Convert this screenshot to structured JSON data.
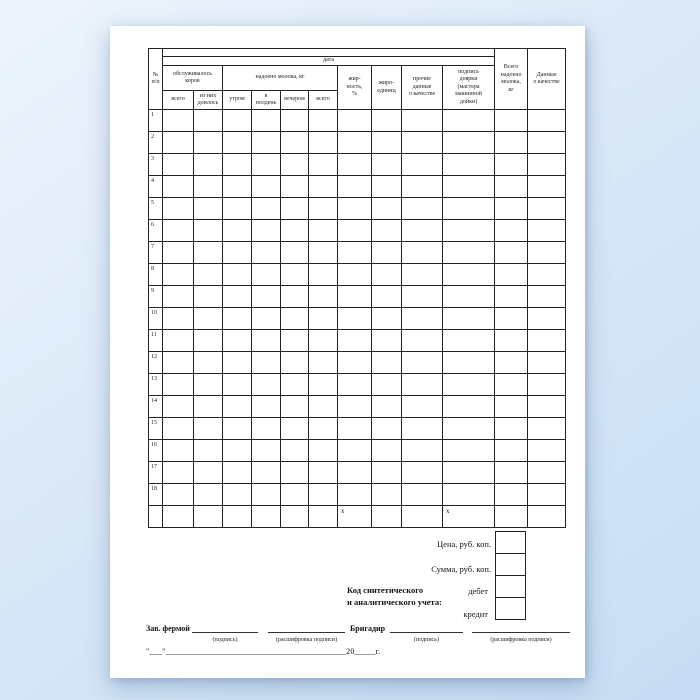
{
  "table": {
    "corner": "№\nп/п",
    "date": "дата",
    "group_serviced": "обслуживалось\nкоров",
    "group_milked": "надоено молока, кг",
    "fat": "жир-\nность,\n%",
    "fat_units": "жиро-\nединиц",
    "other_quality": "прочие\nданные\nо качестве",
    "milker_sign": "подпись\nдоярки\n(мастера\nмашинной\nдойки)",
    "total_milk": "Всего\nнадоено\nмолока,\nкг",
    "quality_data": "Данные\nо качестве",
    "sub": [
      "всего",
      "из них\nдоилось",
      "утром",
      "в\nполдень",
      "вечером",
      "всего"
    ],
    "row_numbers": [
      "1",
      "2",
      "3",
      "4",
      "5",
      "6",
      "7",
      "8",
      "9",
      "10",
      "11",
      "12",
      "13",
      "14",
      "15",
      "16",
      "17",
      "18"
    ],
    "totals_marks": {
      "fat": "х",
      "signature": "х"
    }
  },
  "accounting": {
    "price": "Цена, руб. коп.",
    "sum": "Сумма, руб. коп.",
    "code": "Код синтетического\nи аналитического учета:",
    "debit": "дебет",
    "credit": "кредит"
  },
  "signatures": {
    "farm_manager": "Зав. фермой",
    "brigadier": "Бригадир",
    "sign": "(подпись)",
    "transcript": "(расшифровка подписи)",
    "date_line": "\"___\"___________________________________________20_____г."
  },
  "colors": {
    "line": "#222222",
    "paper": "#ffffff",
    "background": "#d7e7f7"
  }
}
